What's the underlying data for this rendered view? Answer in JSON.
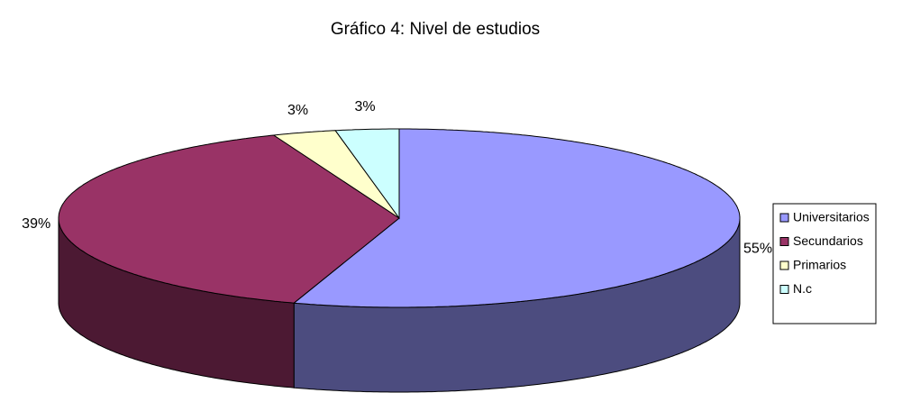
{
  "chart_data": {
    "type": "pie3d",
    "title": "Gráfico 4: Nivel de estudios",
    "categories": [
      "Universitarios",
      "Secundarios",
      "Primarios",
      "N.c"
    ],
    "values": [
      55,
      39,
      3,
      3
    ],
    "value_labels": [
      "55%",
      "39%",
      "3%",
      "3%"
    ],
    "colors": [
      "#9999ff",
      "#993366",
      "#ffffcc",
      "#ccffff"
    ],
    "legend": "right"
  }
}
